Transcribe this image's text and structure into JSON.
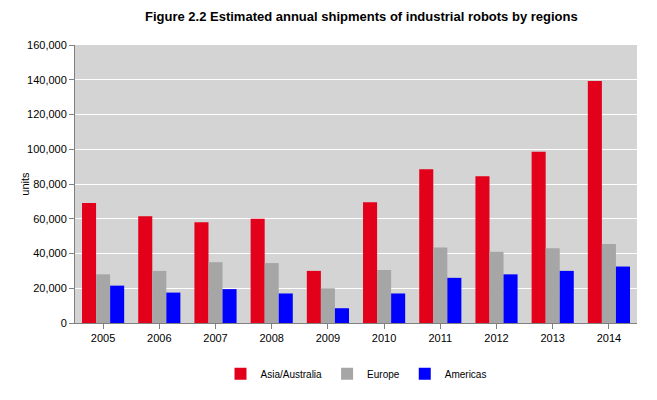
{
  "chart_data": {
    "type": "bar",
    "title": "Figure 2.2 Estimated annual shipments of industrial robots by regions",
    "y_label": "units",
    "categories": [
      "2005",
      "2006",
      "2007",
      "2008",
      "2009",
      "2010",
      "2011",
      "2012",
      "2013",
      "2014"
    ],
    "series": [
      {
        "name": "Asia/Australia",
        "color": "#e3001b",
        "values": [
          69000,
          61500,
          58000,
          60000,
          30000,
          69500,
          88500,
          84500,
          98500,
          139300
        ]
      },
      {
        "name": "Europe",
        "color": "#a6a6a6",
        "values": [
          28000,
          30000,
          35000,
          34500,
          20000,
          30500,
          43500,
          41000,
          43000,
          45500
        ]
      },
      {
        "name": "Americas",
        "color": "#0000ff",
        "values": [
          21500,
          17500,
          19500,
          17000,
          8500,
          17000,
          26000,
          28000,
          30000,
          32500
        ]
      }
    ],
    "ylim": [
      0,
      160000
    ],
    "yticks": [
      0,
      {
        "value": 20000,
        "label": "20,000"
      },
      {
        "value": 40000,
        "label": "40,000"
      },
      {
        "value": 60000,
        "label": "60,000"
      },
      {
        "value": 80000,
        "label": "80,000"
      },
      {
        "value": 100000,
        "label": "100,000"
      },
      {
        "value": 120000,
        "label": "120,000"
      },
      {
        "value": 140000,
        "label": "140,000"
      },
      {
        "value": 160000,
        "label": "160,000"
      }
    ],
    "grid": true,
    "legend": "bottom"
  }
}
